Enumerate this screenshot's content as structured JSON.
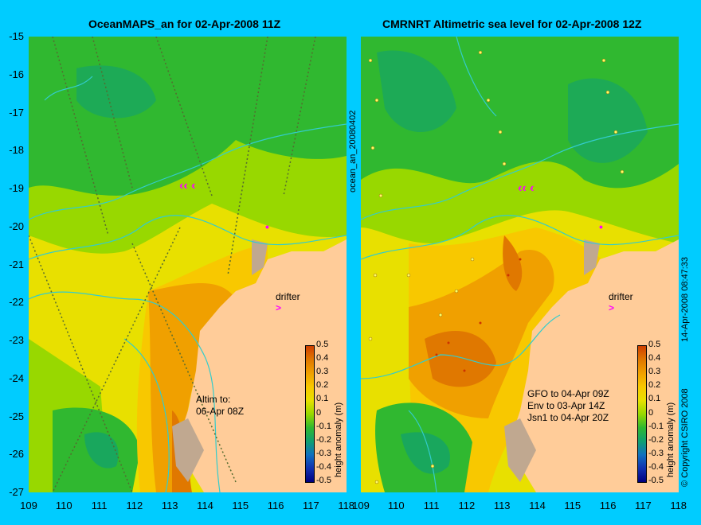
{
  "panels": [
    {
      "title": "OceanMAPS_an for 02-Apr-2008 11Z",
      "side_label": "ocean_an_20080402",
      "annotation": [
        "Altim to:",
        "06-Apr 08Z"
      ],
      "drifter_label": "drifter"
    },
    {
      "title": "CMRNRT Altimetric sea level  for 02-Apr-2008 12Z",
      "side_label": "14-Apr-2008 08:47:33",
      "annotation": [
        "GFO to 04-Apr 09Z",
        "Env to 03-Apr 14Z",
        "Jsn1 to 04-Apr 20Z"
      ],
      "drifter_label": "drifter"
    }
  ],
  "copyright": "© Copyright CSIRO 2008",
  "axes": {
    "y_ticks": [
      "-15",
      "-16",
      "-17",
      "-18",
      "-19",
      "-20",
      "-21",
      "-22",
      "-23",
      "-24",
      "-25",
      "-26",
      "-27"
    ],
    "x_ticks_left": [
      "109",
      "110",
      "111",
      "112",
      "113",
      "114",
      "115",
      "116",
      "117",
      "118"
    ],
    "x_ticks_right": [
      "109",
      "110",
      "111",
      "112",
      "113",
      "114",
      "115",
      "116",
      "117",
      "118"
    ]
  },
  "colorbar": {
    "label": "height anomaly (m)",
    "ticks": [
      "0.5",
      "0.4",
      "0.3",
      "0.2",
      "0.1",
      "0",
      "-0.1",
      "-0.2",
      "-0.3",
      "-0.4",
      "-0.5"
    ],
    "colors": [
      "#d04000",
      "#e07800",
      "#f0a000",
      "#f8c800",
      "#e8e000",
      "#98d800",
      "#30b830",
      "#10a070",
      "#1070c0",
      "#1030b0",
      "#000080"
    ]
  },
  "colors": {
    "background": "#00ccff",
    "land": "#ffcc99",
    "island": "#c0a890",
    "drifter": "#ff00ff",
    "contour": "#33cccc"
  }
}
